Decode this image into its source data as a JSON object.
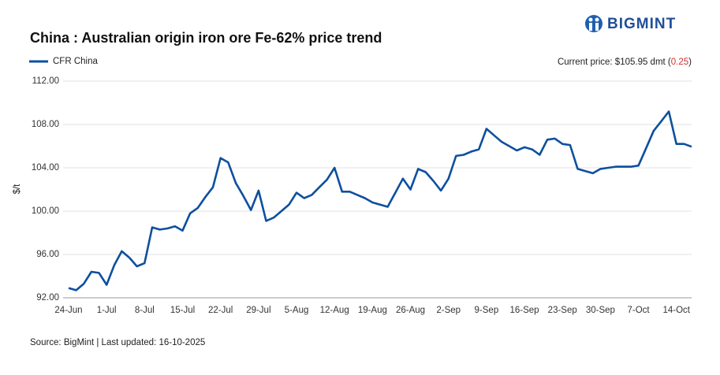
{
  "brand": "BIGMINT",
  "chart_data": {
    "type": "line",
    "title": "China : Australian origin iron ore Fe-62% price trend",
    "current_price_prefix": "Current price: $105.95 dmt (",
    "current_price_change": "0.25",
    "current_price_suffix": ")",
    "y_label": "$/t",
    "source": "Source: BigMint | Last updated: 16-10-2025",
    "categories": [
      "24-Jun",
      null,
      null,
      null,
      null,
      "1-Jul",
      null,
      null,
      null,
      null,
      "8-Jul",
      null,
      null,
      null,
      null,
      "15-Jul",
      null,
      null,
      null,
      null,
      "22-Jul",
      null,
      null,
      null,
      null,
      "29-Jul",
      null,
      null,
      null,
      null,
      "5-Aug",
      null,
      null,
      null,
      null,
      "12-Aug",
      null,
      null,
      null,
      null,
      "19-Aug",
      null,
      null,
      null,
      null,
      "26-Aug",
      null,
      null,
      null,
      null,
      "2-Sep",
      null,
      null,
      null,
      null,
      "9-Sep",
      null,
      null,
      null,
      null,
      "16-Sep",
      null,
      null,
      null,
      null,
      "23-Sep",
      null,
      null,
      null,
      null,
      "30-Sep",
      null,
      null,
      null,
      null,
      "7-Oct",
      null,
      null,
      null,
      null,
      "14-Oct",
      null,
      null
    ],
    "series": [
      {
        "name": "CFR China",
        "color": "#0d4f9e",
        "values": [
          92.9,
          92.7,
          93.3,
          94.4,
          94.3,
          93.2,
          95.0,
          96.3,
          95.7,
          94.9,
          95.2,
          98.5,
          98.3,
          98.4,
          98.6,
          98.2,
          99.8,
          100.3,
          101.3,
          102.2,
          104.9,
          104.5,
          102.6,
          101.4,
          100.1,
          101.9,
          99.1,
          99.4,
          100.0,
          100.6,
          101.7,
          101.2,
          101.5,
          102.2,
          102.9,
          104.0,
          101.8,
          101.8,
          101.5,
          101.2,
          100.8,
          100.6,
          100.4,
          101.7,
          103.0,
          102.0,
          103.9,
          103.6,
          102.8,
          101.9,
          103.0,
          105.1,
          105.2,
          105.5,
          105.7,
          107.6,
          107.0,
          106.4,
          106.0,
          105.6,
          105.9,
          105.7,
          105.2,
          106.6,
          106.7,
          106.2,
          106.1,
          103.9,
          103.7,
          103.5,
          103.9,
          104.0,
          104.1,
          104.1,
          104.1,
          104.2,
          105.8,
          107.4,
          108.3,
          109.2,
          106.2,
          106.2,
          105.95
        ]
      }
    ],
    "ylim": [
      92,
      112
    ],
    "yticks": [
      {
        "value": 92,
        "label": "92.00"
      },
      {
        "value": 96,
        "label": "96.00"
      },
      {
        "value": 100,
        "label": "100.00"
      },
      {
        "value": 104,
        "label": "104.00"
      },
      {
        "value": 108,
        "label": "108.00"
      },
      {
        "value": 112,
        "label": "112.00"
      }
    ],
    "grid": true,
    "legend": "top-left"
  }
}
